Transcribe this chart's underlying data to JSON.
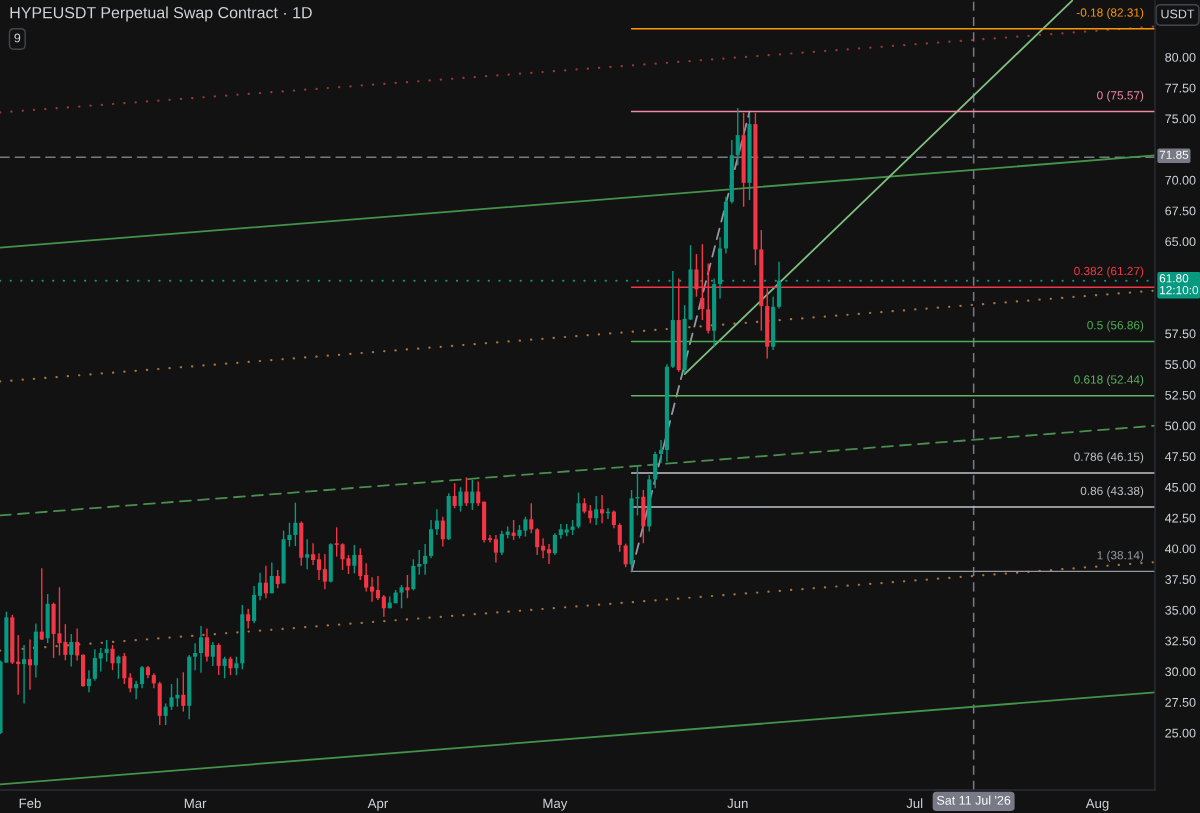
{
  "chart_data": {
    "type": "candlestick",
    "title": "HYPEUSDT Perpetual Swap Contract · 1D",
    "ylabel": "USDT",
    "annotations": [
      "9"
    ],
    "x": [
      "2026-01-27",
      "2026-01-28",
      "2026-01-29",
      "2026-01-30",
      "2026-01-31",
      "2026-02-01",
      "2026-02-02",
      "2026-02-03",
      "2026-02-04",
      "2026-02-05",
      "2026-02-06",
      "2026-02-07",
      "2026-02-08",
      "2026-02-09",
      "2026-02-10",
      "2026-02-11",
      "2026-02-12",
      "2026-02-13",
      "2026-02-14",
      "2026-02-15",
      "2026-02-16",
      "2026-02-17",
      "2026-02-18",
      "2026-02-19",
      "2026-02-20",
      "2026-02-21",
      "2026-02-22",
      "2026-02-23",
      "2026-02-24",
      "2026-02-25",
      "2026-02-26",
      "2026-02-27",
      "2026-02-28",
      "2026-03-01",
      "2026-03-02",
      "2026-03-03",
      "2026-03-04",
      "2026-03-05",
      "2026-03-06",
      "2026-03-07",
      "2026-03-08",
      "2026-03-09",
      "2026-03-10",
      "2026-03-11",
      "2026-03-12",
      "2026-03-13",
      "2026-03-14",
      "2026-03-15",
      "2026-03-16",
      "2026-03-17",
      "2026-03-18",
      "2026-03-19",
      "2026-03-20",
      "2026-03-21",
      "2026-03-22",
      "2026-03-23",
      "2026-03-24",
      "2026-03-25",
      "2026-03-26",
      "2026-03-27",
      "2026-03-28",
      "2026-03-29",
      "2026-03-30",
      "2026-03-31",
      "2026-04-01",
      "2026-04-02",
      "2026-04-03",
      "2026-04-04",
      "2026-04-05",
      "2026-04-06",
      "2026-04-07",
      "2026-04-08",
      "2026-04-09",
      "2026-04-10",
      "2026-04-11",
      "2026-04-12",
      "2026-04-13",
      "2026-04-14",
      "2026-04-15",
      "2026-04-16",
      "2026-04-17",
      "2026-04-18",
      "2026-04-19",
      "2026-04-20",
      "2026-04-21",
      "2026-04-22",
      "2026-04-23",
      "2026-04-24",
      "2026-04-25",
      "2026-04-26",
      "2026-04-27",
      "2026-04-28",
      "2026-04-29",
      "2026-04-30",
      "2026-05-01",
      "2026-05-02",
      "2026-05-03",
      "2026-05-04",
      "2026-05-05",
      "2026-05-06",
      "2026-05-07",
      "2026-05-08",
      "2026-05-09",
      "2026-05-10",
      "2026-05-11",
      "2026-05-12",
      "2026-05-13",
      "2026-05-14",
      "2026-05-15",
      "2026-05-16",
      "2026-05-17",
      "2026-05-18",
      "2026-05-19",
      "2026-05-20",
      "2026-05-21",
      "2026-05-22",
      "2026-05-23",
      "2026-05-24",
      "2026-05-25",
      "2026-05-26",
      "2026-05-27",
      "2026-05-28",
      "2026-05-29",
      "2026-05-30",
      "2026-05-31",
      "2026-06-01",
      "2026-06-02",
      "2026-06-03",
      "2026-06-04",
      "2026-06-05",
      "2026-06-06",
      "2026-06-07",
      "2026-06-08"
    ],
    "ohlc": [
      [
        25.0,
        30.9,
        24.9,
        30.8
      ],
      [
        30.72,
        34.87,
        30.7,
        34.4
      ],
      [
        34.4,
        34.6,
        30.6,
        30.72
      ],
      [
        30.8,
        32.97,
        28.1,
        30.6
      ],
      [
        30.6,
        32.15,
        27.4,
        31.0
      ],
      [
        31.0,
        32.6,
        28.5,
        30.5
      ],
      [
        30.5,
        33.9,
        29.5,
        33.24
      ],
      [
        33.24,
        38.4,
        32.56,
        32.6
      ],
      [
        32.7,
        36.3,
        32.3,
        35.5
      ],
      [
        35.5,
        35.6,
        31.1,
        33.05
      ],
      [
        33.1,
        36.85,
        31.3,
        32.3
      ],
      [
        32.4,
        33.85,
        30.9,
        31.35
      ],
      [
        31.35,
        33.05,
        30.4,
        32.4
      ],
      [
        32.4,
        33.5,
        30.9,
        31.3
      ],
      [
        31.35,
        31.4,
        28.75,
        28.8
      ],
      [
        28.8,
        30.1,
        28.3,
        29.4
      ],
      [
        29.4,
        31.8,
        29.25,
        31.1
      ],
      [
        31.05,
        31.9,
        30.0,
        31.5
      ],
      [
        31.5,
        32.56,
        30.8,
        31.85
      ],
      [
        31.85,
        32.15,
        30.1,
        30.66
      ],
      [
        30.66,
        31.3,
        29.4,
        31.2
      ],
      [
        31.25,
        31.5,
        28.98,
        29.44
      ],
      [
        29.5,
        29.85,
        28.3,
        28.63
      ],
      [
        28.63,
        29.25,
        27.73,
        28.98
      ],
      [
        28.98,
        30.45,
        28.63,
        30.34
      ],
      [
        30.34,
        30.45,
        29.44,
        29.7
      ],
      [
        29.7,
        29.85,
        28.63,
        29.03
      ],
      [
        29.03,
        29.17,
        25.64,
        26.38
      ],
      [
        26.38,
        27.4,
        25.64,
        27.13
      ],
      [
        27.13,
        28.98,
        26.87,
        27.9
      ],
      [
        27.8,
        29.44,
        27.13,
        28.1
      ],
      [
        28.1,
        29.93,
        26.73,
        27.2
      ],
      [
        27.2,
        31.34,
        26.1,
        31.2
      ],
      [
        31.2,
        32.3,
        30.1,
        31.5
      ],
      [
        31.5,
        33.7,
        29.9,
        32.78
      ],
      [
        32.78,
        33.5,
        30.8,
        31.2
      ],
      [
        31.2,
        32.4,
        30.45,
        32.15
      ],
      [
        32.15,
        32.3,
        29.7,
        30.45
      ],
      [
        30.45,
        31.2,
        29.44,
        31.04
      ],
      [
        31.04,
        31.2,
        29.7,
        30.26
      ],
      [
        30.26,
        31.2,
        29.7,
        30.66
      ],
      [
        30.66,
        35.4,
        30.17,
        34.65
      ],
      [
        34.65,
        35.1,
        33.5,
        34.1
      ],
      [
        34.1,
        36.96,
        33.92,
        36.23
      ],
      [
        36.15,
        38.04,
        35.8,
        37.23
      ],
      [
        37.23,
        38.6,
        35.95,
        36.36
      ],
      [
        36.36,
        38.86,
        36.36,
        37.77
      ],
      [
        37.77,
        38.26,
        36.77,
        37.12
      ],
      [
        37.17,
        41.46,
        37.17,
        40.76
      ],
      [
        40.7,
        42.1,
        40.16,
        41.11
      ],
      [
        41.11,
        43.74,
        40.21,
        42.1
      ],
      [
        42.1,
        42.2,
        38.6,
        39.26
      ],
      [
        39.26,
        40.76,
        38.32,
        39.54
      ],
      [
        39.54,
        40.43,
        38.67,
        39.07
      ],
      [
        39.13,
        39.62,
        37.45,
        38.26
      ],
      [
        38.32,
        39.56,
        36.69,
        37.31
      ],
      [
        37.31,
        40.43,
        37.23,
        40.35
      ],
      [
        40.43,
        41.73,
        39.35,
        40.3
      ],
      [
        40.35,
        40.43,
        38.26,
        39.13
      ],
      [
        39.21,
        39.48,
        37.93,
        38.6
      ],
      [
        38.6,
        40.3,
        37.99,
        39.48
      ],
      [
        39.48,
        40.03,
        37.45,
        37.77
      ],
      [
        37.85,
        38.8,
        36.5,
        36.82
      ],
      [
        36.9,
        37.66,
        35.68,
        36.5
      ],
      [
        36.63,
        37.77,
        35.82,
        35.96
      ],
      [
        36.09,
        36.23,
        34.46,
        35.14
      ],
      [
        35.14,
        36.09,
        35.14,
        35.6
      ],
      [
        35.55,
        36.63,
        35.55,
        36.42
      ],
      [
        36.42,
        37.04,
        35.14,
        36.85
      ],
      [
        36.85,
        37.85,
        35.96,
        36.6
      ],
      [
        36.7,
        39.13,
        36.6,
        38.59
      ],
      [
        38.53,
        39.89,
        37.86,
        38.75
      ],
      [
        38.75,
        40.38,
        37.86,
        39.4
      ],
      [
        39.4,
        42.33,
        39.21,
        41.57
      ],
      [
        41.57,
        43.2,
        41.11,
        42.28
      ],
      [
        42.28,
        42.6,
        40.16,
        40.76
      ],
      [
        40.76,
        44.5,
        40.7,
        44.28
      ],
      [
        44.28,
        45.32,
        43.28,
        43.47
      ],
      [
        43.47,
        44.99,
        43.01,
        44.64
      ],
      [
        44.64,
        45.8,
        43.47,
        43.69
      ],
      [
        43.69,
        45.59,
        43.15,
        44.64
      ],
      [
        44.64,
        45.45,
        43.47,
        43.69
      ],
      [
        43.82,
        43.82,
        40.49,
        40.7
      ],
      [
        40.84,
        41.11,
        40.49,
        40.7
      ],
      [
        40.76,
        41.11,
        38.86,
        39.67
      ],
      [
        39.67,
        41.46,
        39.48,
        41.19
      ],
      [
        41.11,
        41.79,
        40.84,
        41.38
      ],
      [
        41.3,
        42.33,
        40.7,
        41.03
      ],
      [
        41.03,
        41.92,
        40.84,
        41.52
      ],
      [
        41.46,
        42.6,
        40.98,
        42.38
      ],
      [
        42.38,
        43.69,
        41.25,
        41.57
      ],
      [
        41.57,
        41.65,
        39.48,
        40.11
      ],
      [
        40.22,
        40.84,
        39.21,
        39.84
      ],
      [
        39.94,
        40.38,
        38.75,
        39.62
      ],
      [
        39.62,
        41.25,
        39.48,
        41.11
      ],
      [
        41.11,
        42.0,
        40.8,
        41.57
      ],
      [
        41.3,
        42.0,
        41.0,
        41.55
      ],
      [
        41.52,
        42.33,
        41.11,
        41.79
      ],
      [
        41.79,
        44.56,
        41.65,
        43.69
      ],
      [
        43.69,
        44.1,
        42.87,
        43.01
      ],
      [
        43.09,
        43.55,
        42.06,
        42.47
      ],
      [
        42.47,
        44.28,
        41.92,
        43.2
      ],
      [
        43.2,
        44.37,
        42.06,
        42.87
      ],
      [
        42.87,
        43.3,
        42.4,
        43.0
      ],
      [
        43.01,
        43.09,
        41.65,
        41.92
      ],
      [
        41.92,
        42.06,
        39.75,
        40.3
      ],
      [
        40.25,
        40.4,
        38.48,
        38.72
      ],
      [
        38.72,
        44.77,
        38.14,
        44.09
      ],
      [
        44.09,
        46.8,
        42.7,
        44.2
      ],
      [
        44.22,
        44.77,
        40.43,
        41.8
      ],
      [
        41.8,
        45.99,
        41.38,
        45.63
      ],
      [
        45.63,
        47.89,
        44.9,
        47.7
      ],
      [
        47.7,
        48.84,
        46.94,
        48.02
      ],
      [
        48.02,
        55.0,
        47.07,
        54.8
      ],
      [
        54.8,
        62.6,
        54.7,
        58.6
      ],
      [
        58.6,
        61.99,
        54.4,
        54.53
      ],
      [
        54.53,
        59.82,
        54.26,
        58.7
      ],
      [
        58.65,
        64.7,
        58.6,
        62.72
      ],
      [
        62.72,
        63.97,
        60.5,
        61.1
      ],
      [
        60.4,
        64.78,
        58.6,
        59.5
      ],
      [
        59.47,
        63.2,
        57.5,
        57.73
      ],
      [
        57.73,
        61.99,
        56.43,
        61.53
      ],
      [
        61.53,
        65.33,
        60.36,
        64.43
      ],
      [
        64.43,
        68.63,
        64.02,
        68.23
      ],
      [
        68.23,
        73.25,
        68.09,
        72.02
      ],
      [
        72.02,
        75.85,
        71.21,
        73.65
      ],
      [
        73.65,
        75.47,
        67.82,
        69.77
      ],
      [
        69.77,
        75.4,
        68.36,
        74.55
      ],
      [
        74.55,
        75.47,
        63.07,
        64.35
      ],
      [
        64.35,
        65.93,
        57.73,
        59.74
      ],
      [
        59.74,
        61.18,
        55.48,
        56.43
      ],
      [
        56.43,
        60.5,
        56.16,
        59.68
      ],
      [
        59.68,
        63.35,
        59.55,
        61.8
      ]
    ],
    "colors": [
      "#089981",
      "#089981",
      "#f23645",
      "#f23645",
      "#089981",
      "#f23645",
      "#089981",
      "#f23645",
      "#089981",
      "#f23645",
      "#f23645",
      "#f23645",
      "#089981",
      "#f23645",
      "#f23645",
      "#089981",
      "#089981",
      "#089981",
      "#089981",
      "#f23645",
      "#089981",
      "#f23645",
      "#f23645",
      "#089981",
      "#089981",
      "#f23645",
      "#f23645",
      "#f23645",
      "#089981",
      "#089981",
      "#089981",
      "#f23645",
      "#089981",
      "#089981",
      "#089981",
      "#f23645",
      "#089981",
      "#f23645",
      "#089981",
      "#f23645",
      "#089981",
      "#089981",
      "#f23645",
      "#089981",
      "#089981",
      "#f23645",
      "#089981",
      "#f23645",
      "#089981",
      "#089981",
      "#089981",
      "#f23645",
      "#089981",
      "#f23645",
      "#f23645",
      "#f23645",
      "#089981",
      "#f23645",
      "#f23645",
      "#f23645",
      "#089981",
      "#f23645",
      "#f23645",
      "#f23645",
      "#f23645",
      "#f23645",
      "#089981",
      "#089981",
      "#089981",
      "#f23645",
      "#089981",
      "#089981",
      "#089981",
      "#089981",
      "#089981",
      "#f23645",
      "#089981",
      "#f23645",
      "#089981",
      "#f23645",
      "#089981",
      "#f23645",
      "#f23645",
      "#f23645",
      "#f23645",
      "#089981",
      "#089981",
      "#f23645",
      "#089981",
      "#089981",
      "#f23645",
      "#f23645",
      "#f23645",
      "#f23645",
      "#089981",
      "#089981",
      "#089981",
      "#089981",
      "#089981",
      "#f23645",
      "#f23645",
      "#089981",
      "#f23645",
      "#089981",
      "#f23645",
      "#f23645",
      "#f23645",
      "#089981",
      "#089981",
      "#f23645",
      "#089981",
      "#089981",
      "#089981",
      "#089981",
      "#089981",
      "#f23645",
      "#089981",
      "#089981",
      "#f23645",
      "#f23645",
      "#f23645",
      "#089981",
      "#089981",
      "#089981",
      "#089981",
      "#089981",
      "#f23645",
      "#089981",
      "#f23645",
      "#f23645",
      "#f23645",
      "#089981",
      "#089981"
    ],
    "series": [
      {
        "type": "line",
        "x": [
          "2026-01-26T22:00",
          "2026-08-10T18:00"
        ],
        "values": [
          75.5,
          82.5
        ],
        "color": "#9a3838",
        "line_style": "dotted"
      },
      {
        "type": "line",
        "x": [
          "2026-01-26T22:00",
          "2026-08-10T18:00"
        ],
        "values": [
          53.6,
          61.0
        ],
        "color": "#a8743f",
        "line_style": "dotted"
      },
      {
        "type": "line",
        "x": [
          "2026-01-26T22:00",
          "2026-08-10T18:00"
        ],
        "values": [
          31.7,
          38.9
        ],
        "color": "#a8743f",
        "line_style": "dotted"
      },
      {
        "type": "line",
        "x": [
          "2026-01-26T22:00",
          "2026-08-10T18:00"
        ],
        "values": [
          64.5,
          72.0
        ],
        "color": "#43944a",
        "line_style": "solid"
      },
      {
        "type": "line",
        "x": [
          "2026-01-26T22:00",
          "2026-08-10T18:00"
        ],
        "values": [
          42.7,
          50.0
        ],
        "color": "#4a8f50",
        "line_style": "dashed"
      },
      {
        "type": "line",
        "x": [
          "2026-01-26T22:00",
          "2026-08-10T18:00"
        ],
        "values": [
          20.8,
          28.3
        ],
        "color": "#43944a",
        "line_style": "solid"
      },
      {
        "type": "line",
        "x": [
          "2026-05-23",
          "2026-07-27T17:00"
        ],
        "values": [
          54.2,
          84.6
        ],
        "color": "#7fbf7f",
        "line_style": "solid"
      },
      {
        "type": "line",
        "x": [
          "2026-05-14",
          "2026-06-03"
        ],
        "values": [
          38.14,
          75.57
        ],
        "color": "#9598a1",
        "line_style": "dashed"
      },
      {
        "type": "line",
        "name": "-0.18 (82.31)",
        "x": [
          "2026-05-14",
          "2026-08-10T18:00"
        ],
        "values": [
          82.31,
          82.31
        ],
        "color": "#ff9800",
        "line_style": "solid"
      },
      {
        "type": "line",
        "name": "0 (75.57)",
        "x": [
          "2026-05-14",
          "2026-08-10T18:00"
        ],
        "values": [
          75.57,
          75.57
        ],
        "color": "#f08aa5",
        "line_style": "solid"
      },
      {
        "type": "line",
        "name": "0.382 (61.27)",
        "x": [
          "2026-05-14",
          "2026-08-10T18:00"
        ],
        "values": [
          61.27,
          61.27
        ],
        "color": "#f23645",
        "line_style": "solid"
      },
      {
        "type": "line",
        "name": "0.5 (56.86)",
        "x": [
          "2026-05-14",
          "2026-08-10T18:00"
        ],
        "values": [
          56.86,
          56.86
        ],
        "color": "#4caf50",
        "line_style": "solid"
      },
      {
        "type": "line",
        "name": "0.618 (52.44)",
        "x": [
          "2026-05-14",
          "2026-08-10T18:00"
        ],
        "values": [
          52.44,
          52.44
        ],
        "color": "#5fb563",
        "line_style": "solid"
      },
      {
        "type": "line",
        "name": "0.786 (46.15)",
        "x": [
          "2026-05-14",
          "2026-08-10T18:00"
        ],
        "values": [
          46.15,
          46.15
        ],
        "color": "#c0c3cb",
        "line_style": "solid"
      },
      {
        "type": "line",
        "name": "0.86 (43.38)",
        "x": [
          "2026-05-14",
          "2026-08-10T18:00"
        ],
        "values": [
          43.38,
          43.38
        ],
        "color": "#c0c3cb",
        "line_style": "solid"
      },
      {
        "type": "line",
        "name": "1 (38.14)",
        "x": [
          "2026-05-14",
          "2026-08-10T18:00"
        ],
        "values": [
          38.14,
          38.14
        ],
        "color": "#9598a1",
        "line_style": "solid"
      }
    ],
    "ref_lines": [
      {
        "axis": "y",
        "value": 71.85,
        "label": "71.85",
        "color": "#787b86",
        "line_style": "dashed"
      },
      {
        "axis": "y",
        "value": 61.8,
        "label": "61.80\n12:10:0",
        "color": "#089981",
        "line_style": "dotted"
      },
      {
        "axis": "x",
        "value": "2026-07-11",
        "label": "Sat 11 Jul '26",
        "color": "#787b86",
        "line_style": "dashed"
      }
    ],
    "xlim": [
      "2026-01-26T22:00",
      "2026-08-10T18:00"
    ],
    "xticks": [
      {
        "value": "2026-02-01",
        "label": "Feb"
      },
      {
        "value": "2026-03-01",
        "label": "Mar"
      },
      {
        "value": "2026-04-01",
        "label": "Apr"
      },
      {
        "value": "2026-05-01",
        "label": "May"
      },
      {
        "value": "2026-06-01",
        "label": "Jun"
      },
      {
        "value": "2026-07-01",
        "label": "Jul"
      },
      {
        "value": "2026-08-01",
        "label": "Aug"
      }
    ],
    "ylim": [
      20.35,
      84.65
    ],
    "yticks": [
      {
        "value": 25,
        "label": "25.00"
      },
      {
        "value": 27.5,
        "label": "27.50"
      },
      {
        "value": 30,
        "label": "30.00"
      },
      {
        "value": 32.5,
        "label": "32.50"
      },
      {
        "value": 35,
        "label": "35.00"
      },
      {
        "value": 37.5,
        "label": "37.50"
      },
      {
        "value": 40,
        "label": "40.00"
      },
      {
        "value": 42.5,
        "label": "42.50"
      },
      {
        "value": 45,
        "label": "45.00"
      },
      {
        "value": 47.5,
        "label": "47.50"
      },
      {
        "value": 50,
        "label": "50.00"
      },
      {
        "value": 52.5,
        "label": "52.50"
      },
      {
        "value": 55,
        "label": "55.00"
      },
      {
        "value": 57.5,
        "label": "57.50"
      },
      {
        "value": 65,
        "label": "65.00"
      },
      {
        "value": 67.5,
        "label": "67.50"
      },
      {
        "value": 70,
        "label": "70.00"
      },
      {
        "value": 75,
        "label": "75.00"
      },
      {
        "value": 77.5,
        "label": "77.50"
      },
      {
        "value": 80,
        "label": "80.00"
      }
    ]
  }
}
